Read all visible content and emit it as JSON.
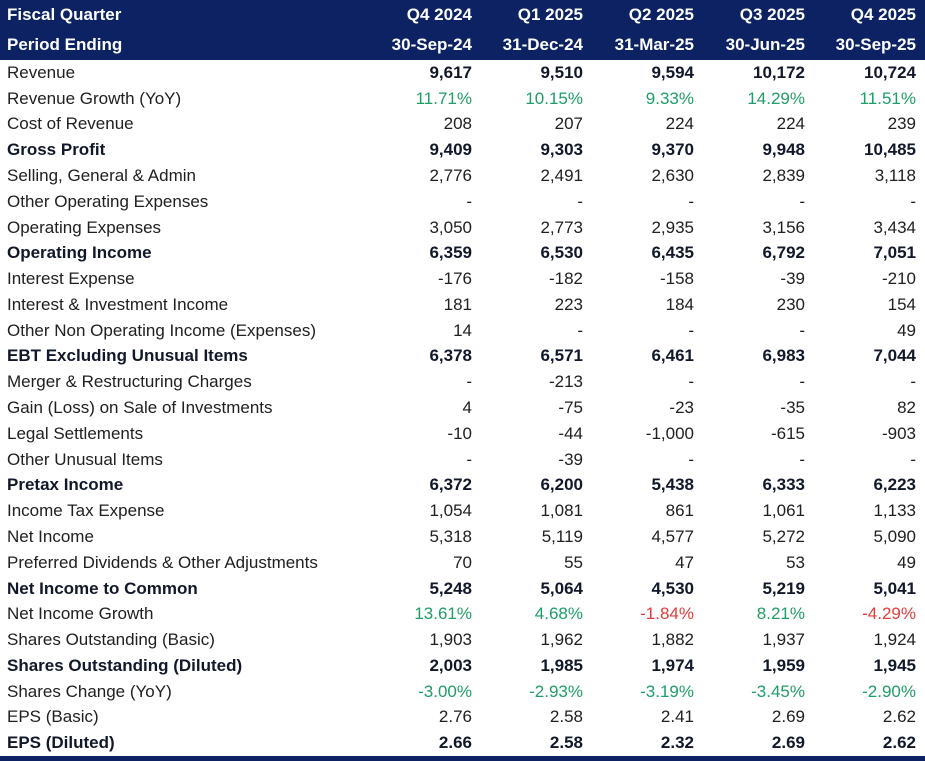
{
  "colors": {
    "navy": "#0d2262",
    "green": "#1f9d66",
    "red": "#e23b3b",
    "text": "#202020",
    "boldText": "#11182a"
  },
  "table": {
    "header": {
      "fiscal_quarter_label": "Fiscal Quarter",
      "period_ending_label": "Period Ending",
      "quarters": [
        "Q4 2024",
        "Q1 2025",
        "Q2 2025",
        "Q3 2025",
        "Q4 2025"
      ],
      "dates": [
        "30-Sep-24",
        "31-Dec-24",
        "31-Mar-25",
        "30-Jun-25",
        "30-Sep-25"
      ]
    },
    "rows": [
      {
        "label": "Revenue",
        "label_bold": false,
        "values_bold": true,
        "values": [
          "9,617",
          "9,510",
          "9,594",
          "10,172",
          "10,724"
        ]
      },
      {
        "label": "Revenue Growth (YoY)",
        "label_bold": false,
        "values_bold": false,
        "values": [
          "11.71%",
          "10.15%",
          "9.33%",
          "14.29%",
          "11.51%"
        ],
        "value_styles": [
          "green",
          "green",
          "green",
          "green",
          "green"
        ]
      },
      {
        "label": "Cost of Revenue",
        "label_bold": false,
        "values_bold": false,
        "values": [
          "208",
          "207",
          "224",
          "224",
          "239"
        ]
      },
      {
        "label": "Gross Profit",
        "label_bold": true,
        "values_bold": true,
        "values": [
          "9,409",
          "9,303",
          "9,370",
          "9,948",
          "10,485"
        ]
      },
      {
        "label": "Selling, General & Admin",
        "label_bold": false,
        "values_bold": false,
        "values": [
          "2,776",
          "2,491",
          "2,630",
          "2,839",
          "3,118"
        ]
      },
      {
        "label": "Other Operating Expenses",
        "label_bold": false,
        "values_bold": false,
        "values": [
          "-",
          "-",
          "-",
          "-",
          "-"
        ]
      },
      {
        "label": "Operating Expenses",
        "label_bold": false,
        "values_bold": false,
        "values": [
          "3,050",
          "2,773",
          "2,935",
          "3,156",
          "3,434"
        ]
      },
      {
        "label": "Operating Income",
        "label_bold": true,
        "values_bold": true,
        "values": [
          "6,359",
          "6,530",
          "6,435",
          "6,792",
          "7,051"
        ]
      },
      {
        "label": "Interest Expense",
        "label_bold": false,
        "values_bold": false,
        "values": [
          "-176",
          "-182",
          "-158",
          "-39",
          "-210"
        ]
      },
      {
        "label": "Interest & Investment Income",
        "label_bold": false,
        "values_bold": false,
        "values": [
          "181",
          "223",
          "184",
          "230",
          "154"
        ]
      },
      {
        "label": "Other Non Operating Income (Expenses)",
        "label_bold": false,
        "values_bold": false,
        "values": [
          "14",
          "-",
          "-",
          "-",
          "49"
        ]
      },
      {
        "label": "EBT Excluding Unusual Items",
        "label_bold": true,
        "values_bold": true,
        "values": [
          "6,378",
          "6,571",
          "6,461",
          "6,983",
          "7,044"
        ]
      },
      {
        "label": "Merger & Restructuring Charges",
        "label_bold": false,
        "values_bold": false,
        "values": [
          "-",
          "-213",
          "-",
          "-",
          "-"
        ]
      },
      {
        "label": "Gain (Loss) on Sale of Investments",
        "label_bold": false,
        "values_bold": false,
        "values": [
          "4",
          "-75",
          "-23",
          "-35",
          "82"
        ]
      },
      {
        "label": "Legal Settlements",
        "label_bold": false,
        "values_bold": false,
        "values": [
          "-10",
          "-44",
          "-1,000",
          "-615",
          "-903"
        ]
      },
      {
        "label": "Other Unusual Items",
        "label_bold": false,
        "values_bold": false,
        "values": [
          "-",
          "-39",
          "-",
          "-",
          "-"
        ]
      },
      {
        "label": "Pretax Income",
        "label_bold": true,
        "values_bold": true,
        "values": [
          "6,372",
          "6,200",
          "5,438",
          "6,333",
          "6,223"
        ]
      },
      {
        "label": "Income Tax Expense",
        "label_bold": false,
        "values_bold": false,
        "values": [
          "1,054",
          "1,081",
          "861",
          "1,061",
          "1,133"
        ]
      },
      {
        "label": "Net Income",
        "label_bold": false,
        "values_bold": false,
        "values": [
          "5,318",
          "5,119",
          "4,577",
          "5,272",
          "5,090"
        ]
      },
      {
        "label": "Preferred Dividends & Other Adjustments",
        "label_bold": false,
        "values_bold": false,
        "values": [
          "70",
          "55",
          "47",
          "53",
          "49"
        ]
      },
      {
        "label": "Net Income to Common",
        "label_bold": true,
        "values_bold": true,
        "values": [
          "5,248",
          "5,064",
          "4,530",
          "5,219",
          "5,041"
        ]
      },
      {
        "label": "Net Income Growth",
        "label_bold": false,
        "values_bold": false,
        "values": [
          "13.61%",
          "4.68%",
          "-1.84%",
          "8.21%",
          "-4.29%"
        ],
        "value_styles": [
          "green",
          "green",
          "red",
          "green",
          "red"
        ]
      },
      {
        "label": "Shares Outstanding (Basic)",
        "label_bold": false,
        "values_bold": false,
        "values": [
          "1,903",
          "1,962",
          "1,882",
          "1,937",
          "1,924"
        ]
      },
      {
        "label": "Shares Outstanding (Diluted)",
        "label_bold": true,
        "values_bold": true,
        "values": [
          "2,003",
          "1,985",
          "1,974",
          "1,959",
          "1,945"
        ]
      },
      {
        "label": "Shares Change (YoY)",
        "label_bold": false,
        "values_bold": false,
        "values": [
          "-3.00%",
          "-2.93%",
          "-3.19%",
          "-3.45%",
          "-2.90%"
        ],
        "value_styles": [
          "green",
          "green",
          "green",
          "green",
          "green"
        ]
      },
      {
        "label": "EPS (Basic)",
        "label_bold": false,
        "values_bold": false,
        "values": [
          "2.76",
          "2.58",
          "2.41",
          "2.69",
          "2.62"
        ]
      },
      {
        "label": "EPS (Diluted)",
        "label_bold": true,
        "values_bold": true,
        "values": [
          "2.66",
          "2.58",
          "2.32",
          "2.69",
          "2.62"
        ]
      }
    ]
  }
}
